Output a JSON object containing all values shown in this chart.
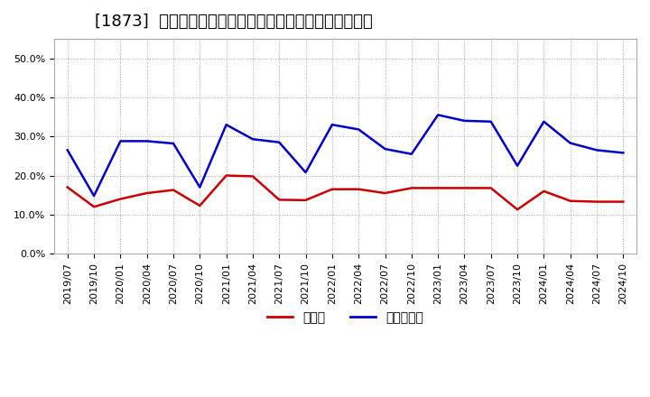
{
  "title": "[1873]  現預金、有利子負債の総資産に対する比率の推移",
  "x_labels": [
    "2019/07",
    "2019/10",
    "2020/01",
    "2020/04",
    "2020/07",
    "2020/10",
    "2021/01",
    "2021/04",
    "2021/07",
    "2021/10",
    "2022/01",
    "2022/04",
    "2022/07",
    "2022/10",
    "2023/01",
    "2023/04",
    "2023/07",
    "2023/10",
    "2024/01",
    "2024/04",
    "2024/07",
    "2024/10"
  ],
  "cash_values": [
    0.17,
    0.12,
    0.14,
    0.155,
    0.163,
    0.123,
    0.2,
    0.198,
    0.138,
    0.137,
    0.165,
    0.165,
    0.155,
    0.168,
    0.168,
    0.168,
    0.168,
    0.113,
    0.16,
    0.135,
    0.133,
    0.133
  ],
  "debt_values": [
    0.265,
    0.148,
    0.288,
    0.288,
    0.282,
    0.17,
    0.33,
    0.293,
    0.285,
    0.208,
    0.33,
    0.318,
    0.268,
    0.255,
    0.355,
    0.34,
    0.338,
    0.225,
    0.338,
    0.283,
    0.265,
    0.258
  ],
  "cash_color": "#cc0000",
  "debt_color": "#0000cc",
  "ylim": [
    0.0,
    0.55
  ],
  "yticks": [
    0.0,
    0.1,
    0.2,
    0.3,
    0.4,
    0.5
  ],
  "legend_cash": "現預金",
  "legend_debt": "有利子負債",
  "bg_color": "#ffffff",
  "plot_bg_color": "#ffffff",
  "grid_color": "#aaaaaa",
  "title_fontsize": 13,
  "legend_fontsize": 10,
  "tick_fontsize": 8
}
